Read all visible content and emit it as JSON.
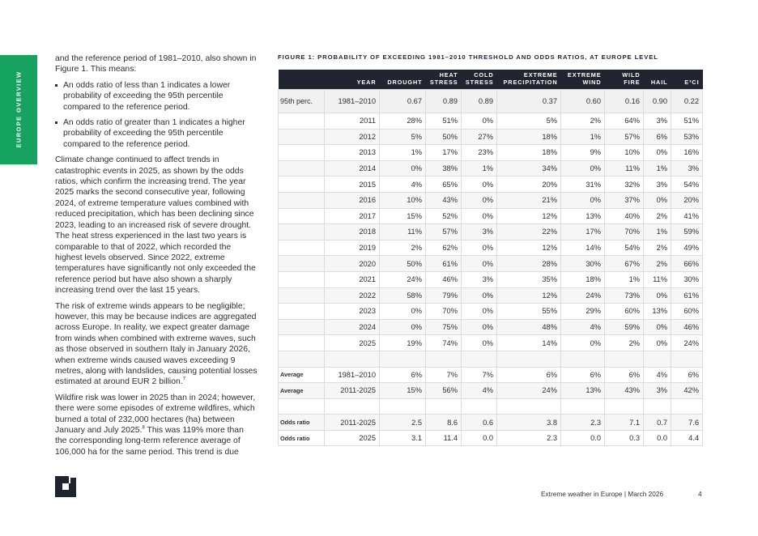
{
  "sidebar": {
    "label": "EUROPE OVERVIEW"
  },
  "body": {
    "intro": "and the reference period of 1981–2010, also shown in Figure 1. This means:",
    "bullets": [
      "An odds ratio of less than 1 indicates a lower probability of exceeding the 95th percentile compared to the reference period.",
      "An odds ratio of greater than 1 indicates a higher probability of exceeding the 95th percentile compared to the reference period."
    ],
    "paragraphs": [
      {
        "text": "Climate change continued to affect trends in catastrophic events in 2025, as shown by the odds ratios, which confirm the increasing trend. The year 2025 marks the second consecutive year, following 2024, of extreme temperature values combined with reduced precipitation, which has been declining since 2023, leading to an increased risk of severe drought. The heat stress experienced in the last two years is comparable to that of 2022, which recorded the highest levels observed. Since 2022, extreme temperatures have significantly not only exceeded the reference period but have also shown a sharply increasing trend over the last 15 years."
      },
      {
        "text": "The risk of extreme winds appears to be negligible; however, this may be because indices are aggregated across Europe. In reality, we expect greater damage from winds when combined with extreme waves, such as those observed in southern Italy in January 2026, when extreme winds caused waves exceeding 9 metres, along with landslides, causing potential losses estimated at around EUR 2 billion.",
        "note": "7"
      },
      {
        "text": "Wildfire risk was lower in 2025 than in 2024; however, there were some episodes of extreme wildfires, which burned a total of 232,000 hectares (ha) between January and July 2025.",
        "note": "8",
        "rest": "This was 119% more than the corresponding long-term reference average of 106,000 ha for the same period. This trend is due"
      }
    ]
  },
  "table": {
    "title": "FIGURE 1: PROBABILITY OF EXCEEDING 1981–2010 THRESHOLD AND ODDS RATIOS, AT EUROPE LEVEL",
    "header": [
      null,
      "YEAR",
      "DROUGHT",
      "HEAT STRESS",
      "COLD STRESS",
      "EXTREME PRECIPITATION",
      "EXTREME WIND",
      "WILD FIRE",
      "HAIL",
      "E³CI"
    ],
    "rows": [
      [
        "95th perc.",
        "1981–2010",
        "0.67",
        "0.89",
        "0.89",
        "0.37",
        "0.60",
        "0.16",
        "0.90",
        "0.22"
      ],
      [
        null,
        "2011",
        "28%",
        "51%",
        "0%",
        "5%",
        "2%",
        "64%",
        "3%",
        "51%"
      ],
      [
        null,
        "2012",
        "5%",
        "50%",
        "27%",
        "18%",
        "1%",
        "57%",
        "6%",
        "53%"
      ],
      [
        null,
        "2013",
        "1%",
        "17%",
        "23%",
        "18%",
        "9%",
        "10%",
        "0%",
        "16%"
      ],
      [
        null,
        "2014",
        "0%",
        "38%",
        "1%",
        "34%",
        "0%",
        "11%",
        "1%",
        "3%"
      ],
      [
        null,
        "2015",
        "4%",
        "65%",
        "0%",
        "20%",
        "31%",
        "32%",
        "3%",
        "54%"
      ],
      [
        null,
        "2016",
        "10%",
        "43%",
        "0%",
        "21%",
        "0%",
        "37%",
        "0%",
        "20%"
      ],
      [
        null,
        "2017",
        "15%",
        "52%",
        "0%",
        "12%",
        "13%",
        "40%",
        "2%",
        "41%"
      ],
      [
        null,
        "2018",
        "11%",
        "57%",
        "3%",
        "22%",
        "17%",
        "70%",
        "1%",
        "59%"
      ],
      [
        null,
        "2019",
        "2%",
        "62%",
        "0%",
        "12%",
        "14%",
        "54%",
        "2%",
        "49%"
      ],
      [
        null,
        "2020",
        "50%",
        "61%",
        "0%",
        "28%",
        "30%",
        "67%",
        "2%",
        "66%"
      ],
      [
        null,
        "2021",
        "24%",
        "46%",
        "3%",
        "35%",
        "18%",
        "1%",
        "11%",
        "30%"
      ],
      [
        null,
        "2022",
        "58%",
        "79%",
        "0%",
        "12%",
        "24%",
        "73%",
        "0%",
        "61%"
      ],
      [
        null,
        "2023",
        "0%",
        "70%",
        "0%",
        "55%",
        "29%",
        "60%",
        "13%",
        "60%"
      ],
      [
        null,
        "2024",
        "0%",
        "75%",
        "0%",
        "48%",
        "4%",
        "59%",
        "0%",
        "46%"
      ],
      [
        null,
        "2025",
        "19%",
        "74%",
        "0%",
        "14%",
        "0%",
        "2%",
        "0%",
        "24%"
      ],
      null,
      [
        "Average",
        "1981–2010",
        "6%",
        "7%",
        "7%",
        "6%",
        "6%",
        "6%",
        "4%",
        "6%"
      ],
      [
        "Average",
        "2011-2025",
        "15%",
        "56%",
        "4%",
        "24%",
        "13%",
        "43%",
        "3%",
        "42%"
      ],
      null,
      [
        "Odds ratio",
        "2011-2025",
        "2.5",
        "8.6",
        "0.6",
        "3.8",
        "2.3",
        "7.1",
        "0.7",
        "7.6"
      ],
      [
        "Odds ratio",
        "2025",
        "3.1",
        "11.4",
        "0.0",
        "2.3",
        "0.0",
        "0.3",
        "0.0",
        "4.4"
      ]
    ]
  },
  "footer": {
    "text": "Extreme weather in Europe | March 2026",
    "page": "4"
  }
}
